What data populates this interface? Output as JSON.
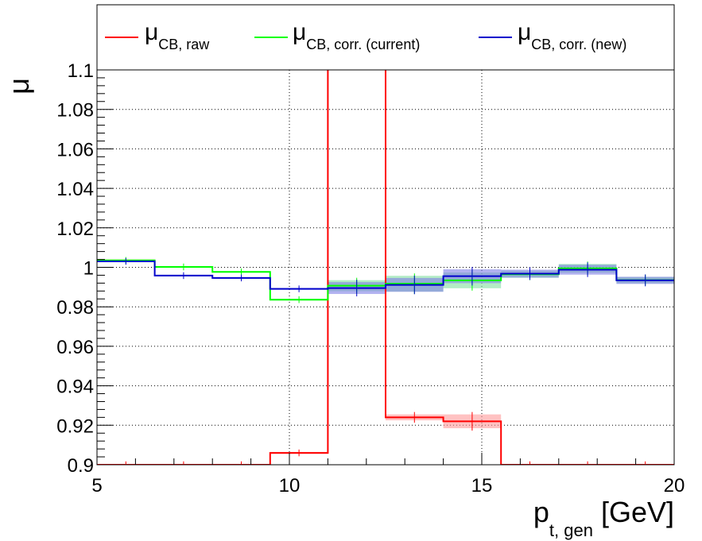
{
  "chart_data": {
    "type": "line",
    "xlim": [
      5,
      20
    ],
    "ylim": [
      0.9,
      1.1
    ],
    "xlabel": {
      "main": "p",
      "sub": "t, gen",
      "unit": " [GeV]"
    },
    "ylabel": "μ",
    "x_ticks": [
      5,
      10,
      15,
      20
    ],
    "x_tick_labels": [
      "5",
      "10",
      "15",
      "20"
    ],
    "y_ticks": [
      0.9,
      0.92,
      0.94,
      0.96,
      0.98,
      1.0,
      1.02,
      1.04,
      1.06,
      1.08,
      1.1
    ],
    "y_tick_labels": [
      "0.9",
      "0.92",
      "0.94",
      "0.96",
      "0.98",
      "1",
      "1.02",
      "1.04",
      "1.06",
      "1.08",
      "1.1"
    ],
    "grid": true,
    "legend_position": "top",
    "bin_edges": [
      5,
      6.5,
      8,
      9.5,
      11,
      12.5,
      14,
      15.5,
      17,
      18.5,
      20
    ],
    "series": [
      {
        "name_main": "μ",
        "name_sub": "CB, raw",
        "color": "#ff0000",
        "band_color": "#ff9999",
        "values": [
          0.9,
          0.9,
          0.9,
          0.906,
          1.3,
          0.924,
          0.922,
          0.9,
          0.9,
          0.9
        ],
        "errors": [
          0,
          0,
          0,
          0.0005,
          0,
          0.0015,
          0.0035,
          0,
          0,
          0
        ]
      },
      {
        "name_main": "μ",
        "name_sub": "CB, corr. (current)",
        "color": "#00ff00",
        "band_color": "#80e0a0",
        "values": [
          1.0035,
          1.0002,
          0.9977,
          0.9836,
          0.9907,
          0.9917,
          0.9934,
          0.9965,
          0.9995,
          0.9935
        ],
        "errors": [
          0.0004,
          0.0004,
          0.0004,
          0.0004,
          0.0028,
          0.004,
          0.004,
          0.0018,
          0.0022,
          0.0016
        ]
      },
      {
        "name_main": "μ",
        "name_sub": "CB, corr. (new)",
        "color": "#0000cc",
        "band_color": "#7f7fe6",
        "values": [
          1.003,
          0.9958,
          0.9946,
          0.9891,
          0.9895,
          0.9911,
          0.9955,
          0.9968,
          0.9988,
          0.9934
        ],
        "errors": [
          0.0004,
          0.0004,
          0.0004,
          0.0004,
          0.003,
          0.0035,
          0.0035,
          0.002,
          0.0025,
          0.0018
        ]
      }
    ]
  }
}
